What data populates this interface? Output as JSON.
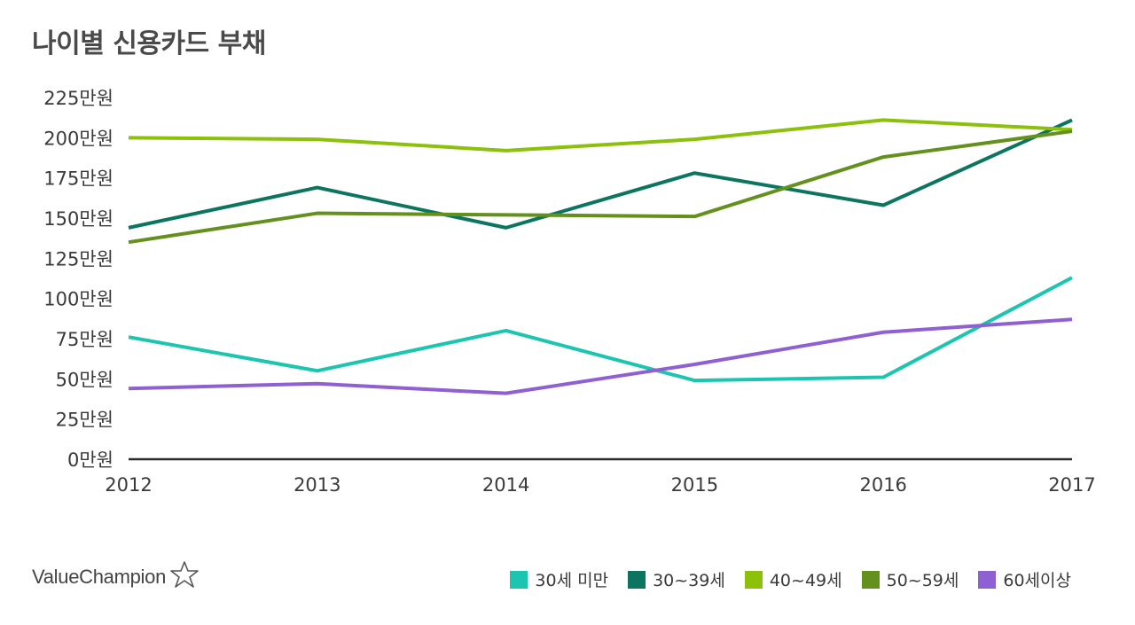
{
  "chart_data": {
    "type": "line",
    "title": "나이별 신용카드 부채",
    "xlabel": "",
    "ylabel": "",
    "x": [
      "2012",
      "2013",
      "2014",
      "2015",
      "2016",
      "2017"
    ],
    "ylim": [
      0,
      225
    ],
    "yticks": [
      {
        "value": 0,
        "label": "0만원"
      },
      {
        "value": 25,
        "label": "25만원"
      },
      {
        "value": 50,
        "label": "50만원"
      },
      {
        "value": 75,
        "label": "75만원"
      },
      {
        "value": 100,
        "label": "100만원"
      },
      {
        "value": 125,
        "label": "125만원"
      },
      {
        "value": 150,
        "label": "150만원"
      },
      {
        "value": 175,
        "label": "175만원"
      },
      {
        "value": 200,
        "label": "200만원"
      },
      {
        "value": 225,
        "label": "225만원"
      }
    ],
    "grid": false,
    "legend_position": "bottom-right",
    "series": [
      {
        "name": "30세 미만",
        "color": "#1cc5b0",
        "values": [
          76,
          55,
          80,
          49,
          51,
          113
        ]
      },
      {
        "name": "30~39세",
        "color": "#0b7560",
        "values": [
          144,
          169,
          144,
          178,
          158,
          211
        ]
      },
      {
        "name": "40~49세",
        "color": "#8cc00a",
        "values": [
          200,
          199,
          192,
          199,
          211,
          205
        ]
      },
      {
        "name": "50~59세",
        "color": "#64901d",
        "values": [
          135,
          153,
          152,
          151,
          188,
          204
        ]
      },
      {
        "name": "60세이상",
        "color": "#8e60d2",
        "values": [
          44,
          47,
          41,
          59,
          79,
          87
        ]
      }
    ]
  },
  "brand": {
    "name": "ValueChampion",
    "logo_icon": "star-outline-icon"
  }
}
